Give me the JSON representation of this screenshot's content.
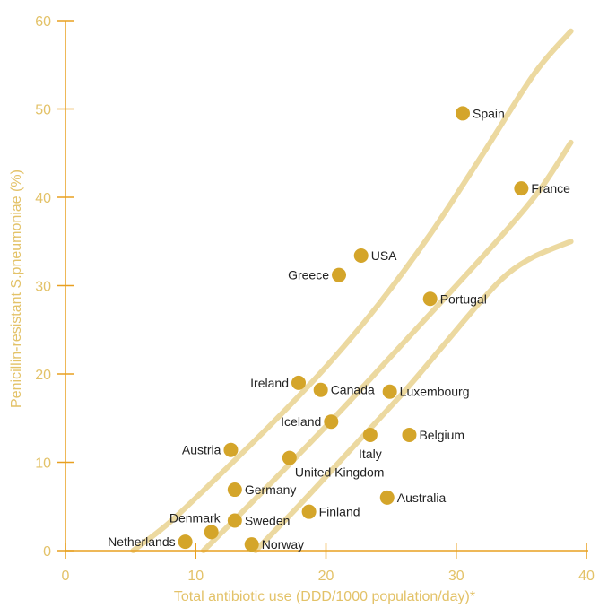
{
  "chart_data": {
    "type": "scatter",
    "xlabel": "Total antibiotic use (DDD/1000 population/day)*",
    "ylabel": "Penicillin-resistant S.pneumoniae (%)",
    "xlim": [
      0,
      40
    ],
    "ylim": [
      0,
      60
    ],
    "xticks": [
      0,
      10,
      20,
      30,
      40
    ],
    "yticks": [
      0,
      10,
      20,
      30,
      40,
      50,
      60
    ],
    "grid": false,
    "colors": {
      "axis": "#e8a020",
      "tick_text": "#e3c268",
      "point": "#d4a52a",
      "curve": "#ecd9a0",
      "label": "#222222"
    },
    "points": [
      {
        "name": "Spain",
        "x": 30.5,
        "y": 49.5,
        "label_side": "right"
      },
      {
        "name": "France",
        "x": 35.0,
        "y": 41.0,
        "label_side": "right"
      },
      {
        "name": "USA",
        "x": 22.7,
        "y": 33.4,
        "label_side": "right"
      },
      {
        "name": "Greece",
        "x": 21.0,
        "y": 31.2,
        "label_side": "left"
      },
      {
        "name": "Portugal",
        "x": 28.0,
        "y": 28.5,
        "label_side": "right"
      },
      {
        "name": "Ireland",
        "x": 17.9,
        "y": 19.0,
        "label_side": "left"
      },
      {
        "name": "Canada",
        "x": 19.6,
        "y": 18.2,
        "label_side": "right"
      },
      {
        "name": "Luxembourg",
        "x": 24.9,
        "y": 18.0,
        "label_side": "right"
      },
      {
        "name": "Iceland",
        "x": 20.4,
        "y": 14.6,
        "label_side": "left"
      },
      {
        "name": "Italy",
        "x": 23.4,
        "y": 13.1,
        "label_side": "below"
      },
      {
        "name": "Belgium",
        "x": 26.4,
        "y": 13.1,
        "label_side": "right"
      },
      {
        "name": "Austria",
        "x": 12.7,
        "y": 11.4,
        "label_side": "left"
      },
      {
        "name": "United Kingdom",
        "x": 17.2,
        "y": 10.5,
        "label_side": "below-right"
      },
      {
        "name": "Germany",
        "x": 13.0,
        "y": 6.9,
        "label_side": "right"
      },
      {
        "name": "Australia",
        "x": 24.7,
        "y": 6.0,
        "label_side": "right"
      },
      {
        "name": "Finland",
        "x": 18.7,
        "y": 4.4,
        "label_side": "right"
      },
      {
        "name": "Sweden",
        "x": 13.0,
        "y": 3.4,
        "label_side": "right"
      },
      {
        "name": "Denmark",
        "x": 11.2,
        "y": 2.1,
        "label_side": "left-above"
      },
      {
        "name": "Netherlands",
        "x": 9.2,
        "y": 1.0,
        "label_side": "left"
      },
      {
        "name": "Norway",
        "x": 14.3,
        "y": 0.7,
        "label_side": "right"
      }
    ],
    "trend_curves": [
      {
        "name": "upper",
        "points": [
          [
            5.2,
            0
          ],
          [
            8,
            3.2
          ],
          [
            12,
            8.8
          ],
          [
            16,
            14.6
          ],
          [
            20,
            20.8
          ],
          [
            24,
            27.8
          ],
          [
            28,
            35.8
          ],
          [
            32,
            44.8
          ],
          [
            36,
            54.0
          ],
          [
            38.8,
            58.8
          ]
        ]
      },
      {
        "name": "middle",
        "points": [
          [
            10.6,
            0
          ],
          [
            14,
            5.0
          ],
          [
            18,
            11.0
          ],
          [
            22,
            17.2
          ],
          [
            26,
            23.6
          ],
          [
            30,
            30.0
          ],
          [
            34,
            36.5
          ],
          [
            36.5,
            41.0
          ],
          [
            38.8,
            46.2
          ]
        ]
      },
      {
        "name": "lower",
        "points": [
          [
            14.6,
            0
          ],
          [
            18,
            5.2
          ],
          [
            22,
            11.6
          ],
          [
            26,
            18.0
          ],
          [
            29,
            23.2
          ],
          [
            32,
            28.4
          ],
          [
            34,
            31.4
          ],
          [
            36,
            33.3
          ],
          [
            38.8,
            35.0
          ]
        ]
      }
    ]
  }
}
